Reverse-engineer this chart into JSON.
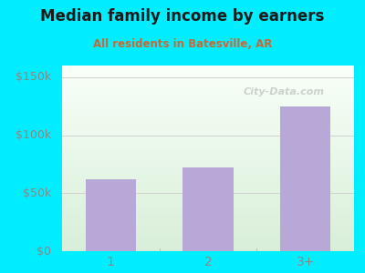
{
  "categories": [
    "1",
    "2",
    "3+"
  ],
  "values": [
    62000,
    72000,
    125000
  ],
  "bar_color": "#b8a8d8",
  "title": "Median family income by earners",
  "subtitle": "All residents in Batesville, AR",
  "title_color": "#1a1a1a",
  "subtitle_color": "#cc6633",
  "outer_bg_color": "#00eeff",
  "plot_bg_topleft": "#f0f8f0",
  "plot_bg_bottomright": "#e8f5e9",
  "ylabel_ticks": [
    0,
    50000,
    100000,
    150000
  ],
  "ylabel_labels": [
    "$0",
    "$50k",
    "$100k",
    "$150k"
  ],
  "ylim": [
    0,
    160000
  ],
  "axis_label_color": "#888888",
  "grid_color": "#d0d0d0",
  "watermark": "City-Data.com",
  "divider_color": "#00eeff"
}
